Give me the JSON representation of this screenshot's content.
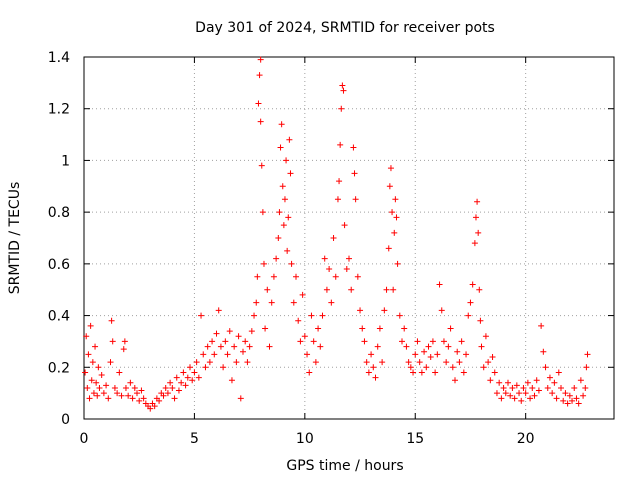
{
  "chart_data": {
    "type": "scatter",
    "title": "Day 301 of 2024, SRMTID for receiver pots",
    "xlabel": "GPS time / hours",
    "ylabel": "SRMTID / TECUs",
    "xlim": [
      0,
      24
    ],
    "ylim": [
      0,
      1.4
    ],
    "grid": true,
    "marker": "+",
    "color": "#ff0000",
    "x_ticks": [
      0,
      5,
      10,
      15,
      20
    ],
    "x_tick_labels": [
      "0",
      "5",
      "10",
      "15",
      "20"
    ],
    "y_ticks": [
      0,
      0.2,
      0.4,
      0.6,
      0.8,
      1.0,
      1.2,
      1.4
    ],
    "y_tick_labels": [
      "0",
      "0.2",
      "0.4",
      "0.6",
      "0.8",
      "1",
      "1.2",
      "1.4"
    ],
    "series": [
      {
        "name": "SRMTID",
        "points": [
          [
            0.05,
            0.18
          ],
          [
            0.1,
            0.32
          ],
          [
            0.15,
            0.12
          ],
          [
            0.2,
            0.25
          ],
          [
            0.25,
            0.08
          ],
          [
            0.3,
            0.36
          ],
          [
            0.35,
            0.15
          ],
          [
            0.4,
            0.22
          ],
          [
            0.45,
            0.1
          ],
          [
            0.5,
            0.28
          ],
          [
            0.55,
            0.14
          ],
          [
            0.6,
            0.09
          ],
          [
            0.65,
            0.2
          ],
          [
            0.7,
            0.12
          ],
          [
            0.8,
            0.17
          ],
          [
            0.9,
            0.1
          ],
          [
            1.0,
            0.13
          ],
          [
            1.1,
            0.08
          ],
          [
            1.2,
            0.22
          ],
          [
            1.25,
            0.38
          ],
          [
            1.3,
            0.3
          ],
          [
            1.4,
            0.12
          ],
          [
            1.5,
            0.1
          ],
          [
            1.6,
            0.18
          ],
          [
            1.7,
            0.09
          ],
          [
            1.8,
            0.27
          ],
          [
            1.85,
            0.3
          ],
          [
            1.9,
            0.12
          ],
          [
            2.0,
            0.09
          ],
          [
            2.1,
            0.14
          ],
          [
            2.2,
            0.08
          ],
          [
            2.3,
            0.12
          ],
          [
            2.4,
            0.1
          ],
          [
            2.5,
            0.07
          ],
          [
            2.6,
            0.11
          ],
          [
            2.7,
            0.08
          ],
          [
            2.8,
            0.06
          ],
          [
            2.9,
            0.05
          ],
          [
            3.0,
            0.04
          ],
          [
            3.1,
            0.06
          ],
          [
            3.2,
            0.05
          ],
          [
            3.3,
            0.08
          ],
          [
            3.4,
            0.07
          ],
          [
            3.5,
            0.1
          ],
          [
            3.6,
            0.09
          ],
          [
            3.7,
            0.12
          ],
          [
            3.8,
            0.1
          ],
          [
            3.9,
            0.14
          ],
          [
            4.0,
            0.12
          ],
          [
            4.1,
            0.08
          ],
          [
            4.2,
            0.16
          ],
          [
            4.3,
            0.11
          ],
          [
            4.4,
            0.14
          ],
          [
            4.5,
            0.18
          ],
          [
            4.6,
            0.13
          ],
          [
            4.7,
            0.16
          ],
          [
            4.8,
            0.2
          ],
          [
            4.9,
            0.15
          ],
          [
            5.0,
            0.18
          ],
          [
            5.1,
            0.22
          ],
          [
            5.2,
            0.16
          ],
          [
            5.3,
            0.4
          ],
          [
            5.4,
            0.25
          ],
          [
            5.5,
            0.2
          ],
          [
            5.6,
            0.28
          ],
          [
            5.7,
            0.22
          ],
          [
            5.8,
            0.3
          ],
          [
            5.9,
            0.25
          ],
          [
            6.0,
            0.33
          ],
          [
            6.1,
            0.42
          ],
          [
            6.2,
            0.28
          ],
          [
            6.3,
            0.2
          ],
          [
            6.4,
            0.3
          ],
          [
            6.5,
            0.25
          ],
          [
            6.6,
            0.34
          ],
          [
            6.7,
            0.15
          ],
          [
            6.8,
            0.28
          ],
          [
            6.9,
            0.22
          ],
          [
            7.0,
            0.32
          ],
          [
            7.1,
            0.08
          ],
          [
            7.2,
            0.26
          ],
          [
            7.3,
            0.3
          ],
          [
            7.4,
            0.22
          ],
          [
            7.5,
            0.28
          ],
          [
            7.6,
            0.34
          ],
          [
            7.7,
            0.4
          ],
          [
            7.8,
            0.45
          ],
          [
            7.85,
            0.55
          ],
          [
            7.9,
            1.22
          ],
          [
            7.95,
            1.33
          ],
          [
            8.0,
            1.39
          ],
          [
            8.0,
            1.15
          ],
          [
            8.05,
            0.98
          ],
          [
            8.1,
            0.8
          ],
          [
            8.15,
            0.6
          ],
          [
            8.2,
            0.35
          ],
          [
            8.3,
            0.5
          ],
          [
            8.4,
            0.28
          ],
          [
            8.5,
            0.45
          ],
          [
            8.6,
            0.55
          ],
          [
            8.7,
            0.62
          ],
          [
            8.8,
            0.7
          ],
          [
            8.85,
            0.8
          ],
          [
            8.9,
            1.05
          ],
          [
            8.95,
            1.14
          ],
          [
            9.0,
            0.9
          ],
          [
            9.05,
            0.75
          ],
          [
            9.1,
            0.85
          ],
          [
            9.15,
            1.0
          ],
          [
            9.2,
            0.65
          ],
          [
            9.25,
            0.78
          ],
          [
            9.3,
            1.08
          ],
          [
            9.35,
            0.95
          ],
          [
            9.4,
            0.6
          ],
          [
            9.5,
            0.45
          ],
          [
            9.6,
            0.55
          ],
          [
            9.7,
            0.38
          ],
          [
            9.8,
            0.3
          ],
          [
            9.9,
            0.48
          ],
          [
            10.0,
            0.32
          ],
          [
            10.1,
            0.25
          ],
          [
            10.2,
            0.18
          ],
          [
            10.3,
            0.4
          ],
          [
            10.4,
            0.3
          ],
          [
            10.5,
            0.22
          ],
          [
            10.6,
            0.35
          ],
          [
            10.7,
            0.28
          ],
          [
            10.8,
            0.4
          ],
          [
            10.9,
            0.62
          ],
          [
            11.0,
            0.5
          ],
          [
            11.1,
            0.58
          ],
          [
            11.2,
            0.45
          ],
          [
            11.3,
            0.7
          ],
          [
            11.4,
            0.55
          ],
          [
            11.5,
            0.85
          ],
          [
            11.55,
            0.92
          ],
          [
            11.6,
            1.06
          ],
          [
            11.65,
            1.2
          ],
          [
            11.7,
            1.29
          ],
          [
            11.75,
            1.27
          ],
          [
            11.8,
            0.75
          ],
          [
            11.9,
            0.58
          ],
          [
            12.0,
            0.62
          ],
          [
            12.1,
            0.5
          ],
          [
            12.2,
            1.05
          ],
          [
            12.25,
            0.95
          ],
          [
            12.3,
            0.85
          ],
          [
            12.4,
            0.55
          ],
          [
            12.5,
            0.42
          ],
          [
            12.6,
            0.35
          ],
          [
            12.7,
            0.3
          ],
          [
            12.8,
            0.22
          ],
          [
            12.9,
            0.18
          ],
          [
            13.0,
            0.25
          ],
          [
            13.1,
            0.2
          ],
          [
            13.2,
            0.16
          ],
          [
            13.3,
            0.28
          ],
          [
            13.4,
            0.35
          ],
          [
            13.5,
            0.22
          ],
          [
            13.6,
            0.42
          ],
          [
            13.7,
            0.5
          ],
          [
            13.8,
            0.66
          ],
          [
            13.85,
            0.9
          ],
          [
            13.9,
            0.97
          ],
          [
            13.95,
            0.8
          ],
          [
            14.0,
            0.5
          ],
          [
            14.05,
            0.72
          ],
          [
            14.1,
            0.85
          ],
          [
            14.15,
            0.78
          ],
          [
            14.2,
            0.6
          ],
          [
            14.3,
            0.4
          ],
          [
            14.4,
            0.3
          ],
          [
            14.5,
            0.35
          ],
          [
            14.6,
            0.28
          ],
          [
            14.7,
            0.22
          ],
          [
            14.8,
            0.2
          ],
          [
            14.9,
            0.18
          ],
          [
            15.0,
            0.25
          ],
          [
            15.1,
            0.3
          ],
          [
            15.2,
            0.22
          ],
          [
            15.3,
            0.18
          ],
          [
            15.4,
            0.26
          ],
          [
            15.5,
            0.2
          ],
          [
            15.6,
            0.28
          ],
          [
            15.7,
            0.24
          ],
          [
            15.8,
            0.3
          ],
          [
            15.9,
            0.18
          ],
          [
            16.0,
            0.25
          ],
          [
            16.1,
            0.52
          ],
          [
            16.2,
            0.42
          ],
          [
            16.3,
            0.3
          ],
          [
            16.4,
            0.22
          ],
          [
            16.5,
            0.28
          ],
          [
            16.6,
            0.35
          ],
          [
            16.7,
            0.2
          ],
          [
            16.8,
            0.15
          ],
          [
            16.9,
            0.26
          ],
          [
            17.0,
            0.22
          ],
          [
            17.1,
            0.3
          ],
          [
            17.2,
            0.18
          ],
          [
            17.3,
            0.25
          ],
          [
            17.4,
            0.4
          ],
          [
            17.5,
            0.45
          ],
          [
            17.6,
            0.52
          ],
          [
            17.7,
            0.68
          ],
          [
            17.75,
            0.78
          ],
          [
            17.8,
            0.84
          ],
          [
            17.85,
            0.72
          ],
          [
            17.9,
            0.5
          ],
          [
            17.95,
            0.38
          ],
          [
            18.0,
            0.28
          ],
          [
            18.1,
            0.2
          ],
          [
            18.2,
            0.32
          ],
          [
            18.3,
            0.22
          ],
          [
            18.4,
            0.15
          ],
          [
            18.5,
            0.24
          ],
          [
            18.6,
            0.18
          ],
          [
            18.7,
            0.1
          ],
          [
            18.8,
            0.14
          ],
          [
            18.9,
            0.08
          ],
          [
            19.0,
            0.12
          ],
          [
            19.1,
            0.1
          ],
          [
            19.2,
            0.14
          ],
          [
            19.3,
            0.09
          ],
          [
            19.4,
            0.12
          ],
          [
            19.5,
            0.08
          ],
          [
            19.6,
            0.13
          ],
          [
            19.7,
            0.1
          ],
          [
            19.8,
            0.07
          ],
          [
            19.9,
            0.12
          ],
          [
            20.0,
            0.1
          ],
          [
            20.1,
            0.14
          ],
          [
            20.2,
            0.08
          ],
          [
            20.3,
            0.12
          ],
          [
            20.4,
            0.09
          ],
          [
            20.5,
            0.15
          ],
          [
            20.6,
            0.11
          ],
          [
            20.7,
            0.36
          ],
          [
            20.8,
            0.26
          ],
          [
            20.9,
            0.2
          ],
          [
            21.0,
            0.12
          ],
          [
            21.1,
            0.16
          ],
          [
            21.2,
            0.1
          ],
          [
            21.3,
            0.14
          ],
          [
            21.4,
            0.08
          ],
          [
            21.5,
            0.18
          ],
          [
            21.6,
            0.12
          ],
          [
            21.7,
            0.07
          ],
          [
            21.8,
            0.1
          ],
          [
            21.9,
            0.06
          ],
          [
            22.0,
            0.09
          ],
          [
            22.1,
            0.07
          ],
          [
            22.2,
            0.12
          ],
          [
            22.3,
            0.08
          ],
          [
            22.4,
            0.06
          ],
          [
            22.5,
            0.15
          ],
          [
            22.6,
            0.09
          ],
          [
            22.7,
            0.12
          ],
          [
            22.75,
            0.2
          ],
          [
            22.8,
            0.25
          ]
        ]
      }
    ]
  }
}
